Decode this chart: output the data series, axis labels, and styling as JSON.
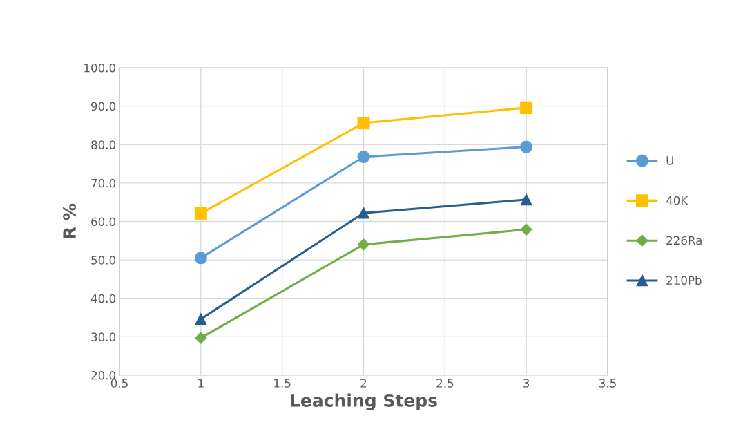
{
  "chart_data": {
    "type": "line",
    "xlabel": "Leaching Steps",
    "ylabel": "R %",
    "x": [
      1,
      2,
      3
    ],
    "series": [
      {
        "name": "U",
        "color": "#5b9bd5",
        "marker": "circle",
        "values": [
          50.5,
          76.8,
          79.4
        ]
      },
      {
        "name": "40K",
        "color": "#ffc000",
        "marker": "square",
        "values": [
          62.1,
          85.6,
          89.6
        ]
      },
      {
        "name": "226Ra",
        "color": "#70ad47",
        "marker": "diamond",
        "values": [
          29.7,
          54.0,
          57.9
        ]
      },
      {
        "name": "210Pb",
        "color": "#255e91",
        "marker": "triangle",
        "values": [
          34.6,
          62.2,
          65.7
        ]
      }
    ],
    "xlim": [
      0.5,
      3.5
    ],
    "xticks": [
      0.5,
      1,
      1.5,
      2,
      2.5,
      3,
      3.5
    ],
    "ylim": [
      20,
      100
    ],
    "yticks": [
      {
        "value": 20,
        "label": "20.0"
      },
      {
        "value": 30,
        "label": "30.0"
      },
      {
        "value": 40,
        "label": "40.0"
      },
      {
        "value": 50,
        "label": "50.0"
      },
      {
        "value": 60,
        "label": "60.0"
      },
      {
        "value": 70,
        "label": "70.0"
      },
      {
        "value": 80,
        "label": "80.0"
      },
      {
        "value": 90,
        "label": "90.0"
      },
      {
        "value": 100,
        "label": "100.0"
      }
    ],
    "grid": true,
    "legend": "right",
    "line_style": "solid"
  }
}
